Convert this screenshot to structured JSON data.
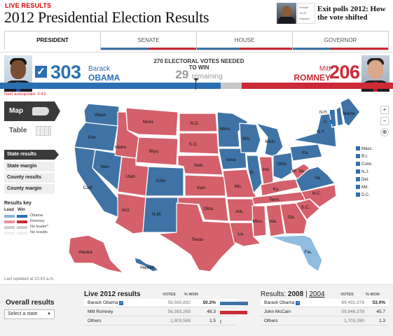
{
  "header": {
    "live_label": "LIVE RESULTS",
    "title": "2012 Presidential Election Results",
    "promo": {
      "text": "Exit polls 2012: How the vote shifted",
      "chart_labels": [
        "Female",
        "18-29",
        "Hispanic"
      ]
    }
  },
  "tabs": [
    {
      "label": "PRESIDENT",
      "active": true
    },
    {
      "label": "SENATE",
      "active": false
    },
    {
      "label": "HOUSE",
      "active": false
    },
    {
      "label": "GOVERNOR",
      "active": false
    }
  ],
  "scoreboard": {
    "obama": {
      "first": "Barack",
      "last": "OBAMA",
      "votes": "303",
      "color": "#2b6fb3"
    },
    "romney": {
      "first": "Mitt",
      "last": "ROMNEY",
      "votes": "206",
      "color": "#cc2a36"
    },
    "needed": "270 ELECTORAL VOTES NEEDED TO WIN",
    "remaining_count": "29",
    "remaining_word": "remaining",
    "auto_update": "Next autoupdate: 0:43"
  },
  "view_toggle": {
    "map": "Map",
    "table": "Table",
    "selected": "Map"
  },
  "view_options": [
    "State results",
    "State margin",
    "County results",
    "County margin"
  ],
  "results_key": {
    "title": "Results key",
    "col_lead": "Lead",
    "col_win": "Win",
    "rows": [
      {
        "label": "Obama",
        "lead": "#8fb3d9",
        "win": "#2b6fb3"
      },
      {
        "label": "Romney",
        "lead": "#e4939a",
        "win": "#cc2a36"
      },
      {
        "label": "No leader*",
        "lead": "#cccccc",
        "win": "#cccccc"
      },
      {
        "label": "No results",
        "lead": "#eeeeee",
        "win": "#eeeeee"
      }
    ]
  },
  "map": {
    "colors": {
      "obama_win": "#3f73a6",
      "romney_win": "#d4606b",
      "obama_lead": "#8fbde0"
    },
    "states": [
      {
        "abbr": "Wash.",
        "winner": "obama_win"
      },
      {
        "abbr": "Ore.",
        "winner": "obama_win"
      },
      {
        "abbr": "Calif.",
        "winner": "obama_win"
      },
      {
        "abbr": "Nev.",
        "winner": "obama_win"
      },
      {
        "abbr": "Idaho",
        "winner": "romney_win"
      },
      {
        "abbr": "Mont.",
        "winner": "romney_win"
      },
      {
        "abbr": "Wyo.",
        "winner": "romney_win"
      },
      {
        "abbr": "Utah",
        "winner": "romney_win"
      },
      {
        "abbr": "Colo.",
        "winner": "obama_win"
      },
      {
        "abbr": "Ariz.",
        "winner": "romney_win"
      },
      {
        "abbr": "N.M.",
        "winner": "obama_win"
      },
      {
        "abbr": "N.D.",
        "winner": "romney_win"
      },
      {
        "abbr": "S.D.",
        "winner": "romney_win"
      },
      {
        "abbr": "Neb.",
        "winner": "romney_win"
      },
      {
        "abbr": "Kan.",
        "winner": "romney_win"
      },
      {
        "abbr": "Okla.",
        "winner": "romney_win"
      },
      {
        "abbr": "Texas",
        "winner": "romney_win"
      },
      {
        "abbr": "Minn.",
        "winner": "obama_win"
      },
      {
        "abbr": "Iowa",
        "winner": "obama_win"
      },
      {
        "abbr": "Mo.",
        "winner": "romney_win"
      },
      {
        "abbr": "Ark.",
        "winner": "romney_win"
      },
      {
        "abbr": "La.",
        "winner": "romney_win"
      },
      {
        "abbr": "Wis.",
        "winner": "obama_win"
      },
      {
        "abbr": "Ill.",
        "winner": "obama_win"
      },
      {
        "abbr": "Mich.",
        "winner": "obama_win"
      },
      {
        "abbr": "Ind.",
        "winner": "romney_win"
      },
      {
        "abbr": "Ohio",
        "winner": "obama_win"
      },
      {
        "abbr": "Ky.",
        "winner": "romney_win"
      },
      {
        "abbr": "Tenn.",
        "winner": "romney_win"
      },
      {
        "abbr": "Miss.",
        "winner": "romney_win"
      },
      {
        "abbr": "Ala.",
        "winner": "romney_win"
      },
      {
        "abbr": "Ga.",
        "winner": "romney_win"
      },
      {
        "abbr": "Fla.",
        "winner": "obama_lead"
      },
      {
        "abbr": "S.C.",
        "winner": "romney_win"
      },
      {
        "abbr": "N.C.",
        "winner": "romney_win"
      },
      {
        "abbr": "Va.",
        "winner": "obama_win"
      },
      {
        "abbr": "W. Va.",
        "winner": "romney_win"
      },
      {
        "abbr": "Pa.",
        "winner": "obama_win"
      },
      {
        "abbr": "N.Y.",
        "winner": "obama_win"
      },
      {
        "abbr": "Vt.",
        "winner": "obama_win"
      },
      {
        "abbr": "N.H.",
        "winner": "obama_win"
      },
      {
        "abbr": "Maine",
        "winner": "obama_win"
      },
      {
        "abbr": "Alaska",
        "winner": "romney_win"
      },
      {
        "abbr": "Hawaii",
        "winner": "obama_win"
      }
    ],
    "east_labels": [
      "Mass.",
      "R.I.",
      "Conn.",
      "N.J.",
      "Del.",
      "Md.",
      "D.C."
    ],
    "north_labels": [
      "N.H.",
      "Vt."
    ],
    "zoom_in": "+",
    "zoom_out": "−",
    "reset": "⊗"
  },
  "last_updated": "Last updated at 10:43 a.m.",
  "overall": {
    "title": "Overall results",
    "select_placeholder": "Select a state"
  },
  "live_results": {
    "title": "Live 2012 results",
    "col_votes": "VOTES",
    "col_pct": "% WON",
    "rows": [
      {
        "name": "Barack Obama",
        "check": true,
        "votes": "58,565,892",
        "pct": "50.2%",
        "pct_value": 50.2,
        "color": "#3f73a6"
      },
      {
        "name": "Mitt Romney",
        "check": false,
        "votes": "56,393,265",
        "pct": "48.3",
        "pct_value": 48.3,
        "color": "#cc2a36"
      },
      {
        "name": "Others",
        "check": false,
        "votes": "1,803,588",
        "pct": "1.5",
        "pct_value": 1.5,
        "color": "#aaaaaa"
      }
    ]
  },
  "past_results": {
    "title_prefix": "Results:",
    "year_current": "2008",
    "sep": "|",
    "year_alt": "2004",
    "col_votes": "VOTES",
    "col_pct": "% WON",
    "rows": [
      {
        "name": "Barack Obama",
        "check": true,
        "votes": "69,492,376",
        "pct": "53.0%"
      },
      {
        "name": "John McCain",
        "check": false,
        "votes": "59,946,378",
        "pct": "45.7"
      },
      {
        "name": "Others",
        "check": false,
        "votes": "1,703,390",
        "pct": "1.3"
      }
    ]
  }
}
